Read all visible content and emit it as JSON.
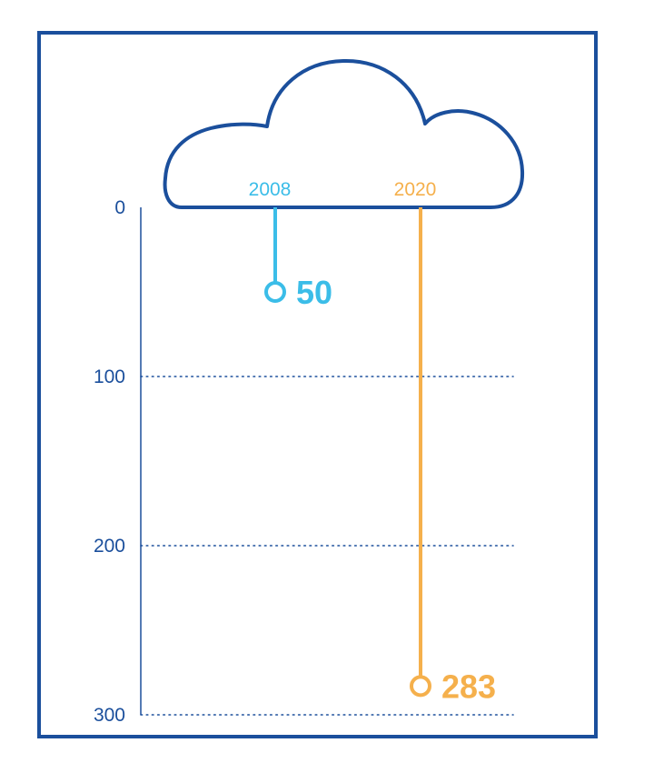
{
  "chart_data": {
    "type": "bar",
    "orientation": "vertical-downward",
    "categories": [
      "2008",
      "2020"
    ],
    "values": [
      50,
      283
    ],
    "ylim": [
      0,
      300
    ],
    "yticks": [
      "0",
      "100",
      "200",
      "300"
    ],
    "value_labels": [
      "50",
      "283"
    ],
    "grid": true,
    "colors": {
      "frame": "#1b4f9c",
      "axis": "#1b4f9c",
      "cloud": "#1b4f9c",
      "series_2008": "#3bbde8",
      "series_2020": "#f5b04c"
    },
    "icons": [
      "cloud-icon"
    ]
  }
}
